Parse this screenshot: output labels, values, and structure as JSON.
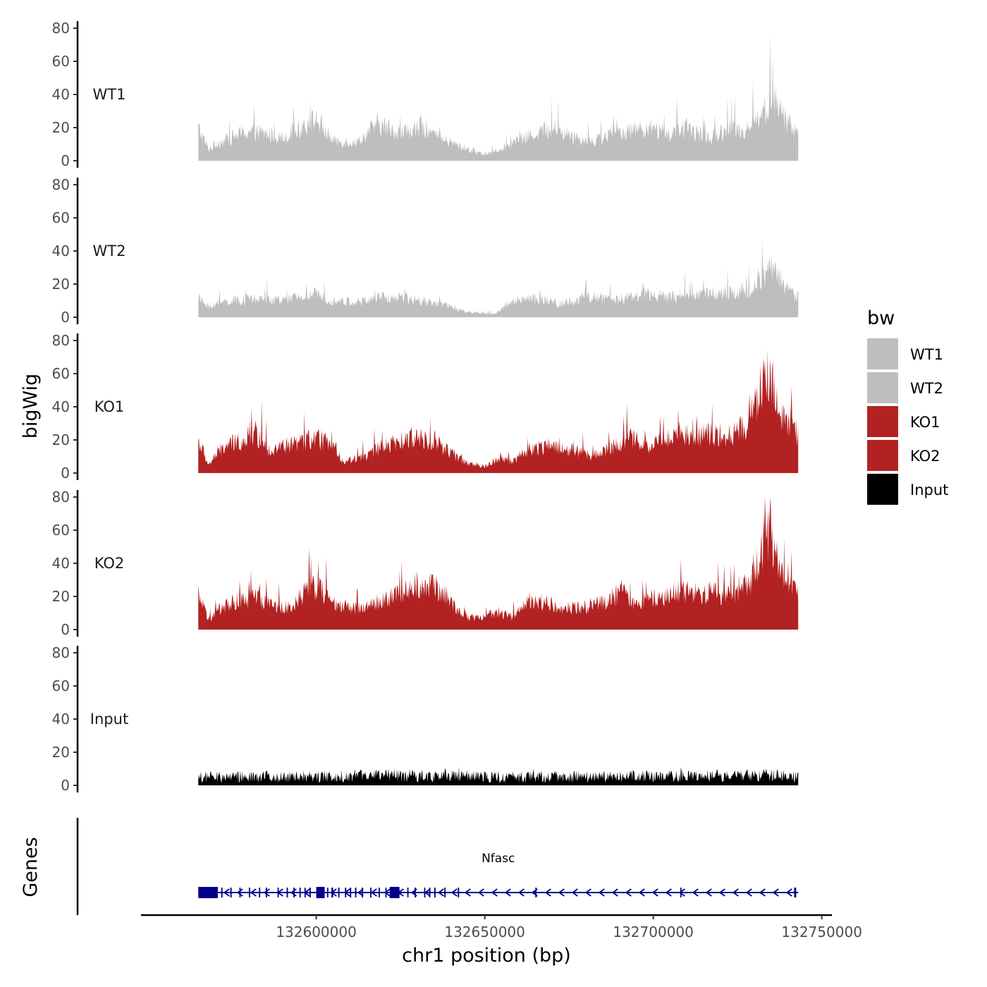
{
  "chart_data": {
    "type": "area",
    "title": "",
    "xlabel": "chr1 position (bp)",
    "ylabel": "bigWig",
    "genes_label": "Genes",
    "xlim": [
      132548000,
      132753000
    ],
    "data_range": [
      132565000,
      132743000
    ],
    "x_ticks": [
      132600000,
      132650000,
      132700000,
      132750000
    ],
    "x_tick_labels": [
      "132600000",
      "132650000",
      "132700000",
      "132750000"
    ],
    "ylim": [
      0,
      80
    ],
    "y_ticks": [
      0,
      20,
      40,
      60,
      80
    ],
    "y_tick_labels": [
      "0",
      "20",
      "40",
      "60",
      "80"
    ],
    "legend": {
      "title": "bw",
      "position": "right",
      "entries": [
        {
          "label": "WT1",
          "color": "#bebebe"
        },
        {
          "label": "WT2",
          "color": "#bebebe"
        },
        {
          "label": "KO1",
          "color": "#b22222"
        },
        {
          "label": "KO2",
          "color": "#b22222"
        },
        {
          "label": "Input",
          "color": "#000000"
        }
      ]
    },
    "series": [
      {
        "name": "WT1",
        "color": "#bebebe",
        "profile": [
          [
            132565000,
            20
          ],
          [
            132568000,
            7
          ],
          [
            132572000,
            12
          ],
          [
            132580000,
            18
          ],
          [
            132590000,
            14
          ],
          [
            132600000,
            25
          ],
          [
            132605000,
            12
          ],
          [
            132612000,
            11
          ],
          [
            132618000,
            22
          ],
          [
            132625000,
            17
          ],
          [
            132632000,
            20
          ],
          [
            132637000,
            13
          ],
          [
            132645000,
            7
          ],
          [
            132650000,
            4
          ],
          [
            132657000,
            9
          ],
          [
            132663000,
            15
          ],
          [
            132670000,
            20
          ],
          [
            132677000,
            14
          ],
          [
            132682000,
            12
          ],
          [
            132690000,
            17
          ],
          [
            132697000,
            20
          ],
          [
            132705000,
            16
          ],
          [
            132710000,
            20
          ],
          [
            132717000,
            13
          ],
          [
            132722000,
            20
          ],
          [
            132727000,
            18
          ],
          [
            132733000,
            30
          ],
          [
            132735000,
            38
          ],
          [
            132738000,
            30
          ],
          [
            132741000,
            20
          ],
          [
            132743000,
            18
          ]
        ]
      },
      {
        "name": "WT2",
        "color": "#bebebe",
        "profile": [
          [
            132565000,
            12
          ],
          [
            132568000,
            6
          ],
          [
            132572000,
            9
          ],
          [
            132580000,
            11
          ],
          [
            132590000,
            10
          ],
          [
            132600000,
            14
          ],
          [
            132605000,
            10
          ],
          [
            132612000,
            9
          ],
          [
            132620000,
            12
          ],
          [
            132630000,
            11
          ],
          [
            132637000,
            8
          ],
          [
            132645000,
            3
          ],
          [
            132653000,
            2
          ],
          [
            132658000,
            10
          ],
          [
            132665000,
            11
          ],
          [
            132672000,
            8
          ],
          [
            132680000,
            12
          ],
          [
            132690000,
            11
          ],
          [
            132697000,
            14
          ],
          [
            132705000,
            12
          ],
          [
            132712000,
            13
          ],
          [
            132718000,
            15
          ],
          [
            132725000,
            14
          ],
          [
            132730000,
            18
          ],
          [
            132733000,
            26
          ],
          [
            132735000,
            30
          ],
          [
            132738000,
            22
          ],
          [
            132741000,
            14
          ],
          [
            132743000,
            13
          ]
        ]
      },
      {
        "name": "KO1",
        "color": "#b22222",
        "profile": [
          [
            132565000,
            20
          ],
          [
            132568000,
            5
          ],
          [
            132572000,
            15
          ],
          [
            132578000,
            20
          ],
          [
            132582000,
            24
          ],
          [
            132586000,
            14
          ],
          [
            132592000,
            17
          ],
          [
            132598000,
            20
          ],
          [
            132602000,
            20
          ],
          [
            132606000,
            14
          ],
          [
            132608000,
            7
          ],
          [
            132614000,
            10
          ],
          [
            132620000,
            16
          ],
          [
            132625000,
            19
          ],
          [
            132630000,
            22
          ],
          [
            132635000,
            20
          ],
          [
            132640000,
            12
          ],
          [
            132645000,
            6
          ],
          [
            132650000,
            4
          ],
          [
            132655000,
            10
          ],
          [
            132658000,
            7
          ],
          [
            132663000,
            14
          ],
          [
            132668000,
            17
          ],
          [
            132675000,
            14
          ],
          [
            132682000,
            11
          ],
          [
            132688000,
            16
          ],
          [
            132693000,
            21
          ],
          [
            132698000,
            17
          ],
          [
            132703000,
            20
          ],
          [
            132708000,
            25
          ],
          [
            132713000,
            22
          ],
          [
            132718000,
            24
          ],
          [
            132723000,
            23
          ],
          [
            132728000,
            30
          ],
          [
            132731000,
            45
          ],
          [
            132733000,
            58
          ],
          [
            132735000,
            55
          ],
          [
            132737000,
            42
          ],
          [
            132739000,
            30
          ],
          [
            132741000,
            26
          ],
          [
            132743000,
            22
          ]
        ]
      },
      {
        "name": "KO2",
        "color": "#b22222",
        "profile": [
          [
            132565000,
            22
          ],
          [
            132568000,
            5
          ],
          [
            132572000,
            14
          ],
          [
            132578000,
            18
          ],
          [
            132583000,
            19
          ],
          [
            132588000,
            14
          ],
          [
            132593000,
            14
          ],
          [
            132598000,
            27
          ],
          [
            132602000,
            23
          ],
          [
            132606000,
            14
          ],
          [
            132612000,
            13
          ],
          [
            132618000,
            16
          ],
          [
            132623000,
            20
          ],
          [
            132628000,
            26
          ],
          [
            132633000,
            28
          ],
          [
            132638000,
            22
          ],
          [
            132643000,
            9
          ],
          [
            132648000,
            7
          ],
          [
            132653000,
            10
          ],
          [
            132658000,
            8
          ],
          [
            132663000,
            18
          ],
          [
            132668000,
            16
          ],
          [
            132674000,
            13
          ],
          [
            132680000,
            14
          ],
          [
            132686000,
            18
          ],
          [
            132691000,
            23
          ],
          [
            132695000,
            14
          ],
          [
            132701000,
            20
          ],
          [
            132708000,
            22
          ],
          [
            132714000,
            23
          ],
          [
            132720000,
            21
          ],
          [
            132725000,
            22
          ],
          [
            132728000,
            28
          ],
          [
            132731000,
            40
          ],
          [
            132733000,
            55
          ],
          [
            132735000,
            58
          ],
          [
            132737000,
            38
          ],
          [
            132739000,
            28
          ],
          [
            132741000,
            24
          ],
          [
            132743000,
            22
          ]
        ]
      },
      {
        "name": "Input",
        "color": "#000000",
        "profile": [
          [
            132565000,
            5
          ],
          [
            132600000,
            5.5
          ],
          [
            132637000,
            6
          ],
          [
            132650000,
            5
          ],
          [
            132700000,
            5.5
          ],
          [
            132735000,
            6
          ],
          [
            132743000,
            5
          ]
        ]
      }
    ],
    "gene_track": {
      "gene_name": "Nfasc",
      "strand": "-",
      "color": "#00008b",
      "start": 132565000,
      "end": 132743000,
      "exons": [
        [
          132565000,
          132570800
        ],
        [
          132571800,
          132572200
        ],
        [
          132574500,
          132574900
        ],
        [
          132577200,
          132577500
        ],
        [
          132580000,
          132580400
        ],
        [
          132583000,
          132583300
        ],
        [
          132585000,
          132585400
        ],
        [
          132588500,
          132588800
        ],
        [
          132591200,
          132591600
        ],
        [
          132593200,
          132593500
        ],
        [
          132595000,
          132595400
        ],
        [
          132596500,
          132596800
        ],
        [
          132598000,
          132598300
        ],
        [
          132600000,
          132602500
        ],
        [
          132603200,
          132603500
        ],
        [
          132604500,
          132605000
        ],
        [
          132606500,
          132606900
        ],
        [
          132608500,
          132608900
        ],
        [
          132610000,
          132610300
        ],
        [
          132611500,
          132611900
        ],
        [
          132613500,
          132613800
        ],
        [
          132616000,
          132616300
        ],
        [
          132618500,
          132618800
        ],
        [
          132620500,
          132620800
        ],
        [
          132621800,
          132624700
        ],
        [
          132627000,
          132627300
        ],
        [
          132629200,
          132629500
        ],
        [
          132632000,
          132632300
        ],
        [
          132633500,
          132633800
        ],
        [
          132635000,
          132635400
        ],
        [
          132638000,
          132638300
        ],
        [
          132642000,
          132642400
        ],
        [
          132665000,
          132665300
        ],
        [
          132708000,
          132708300
        ],
        [
          132741800,
          132742400
        ]
      ]
    }
  }
}
